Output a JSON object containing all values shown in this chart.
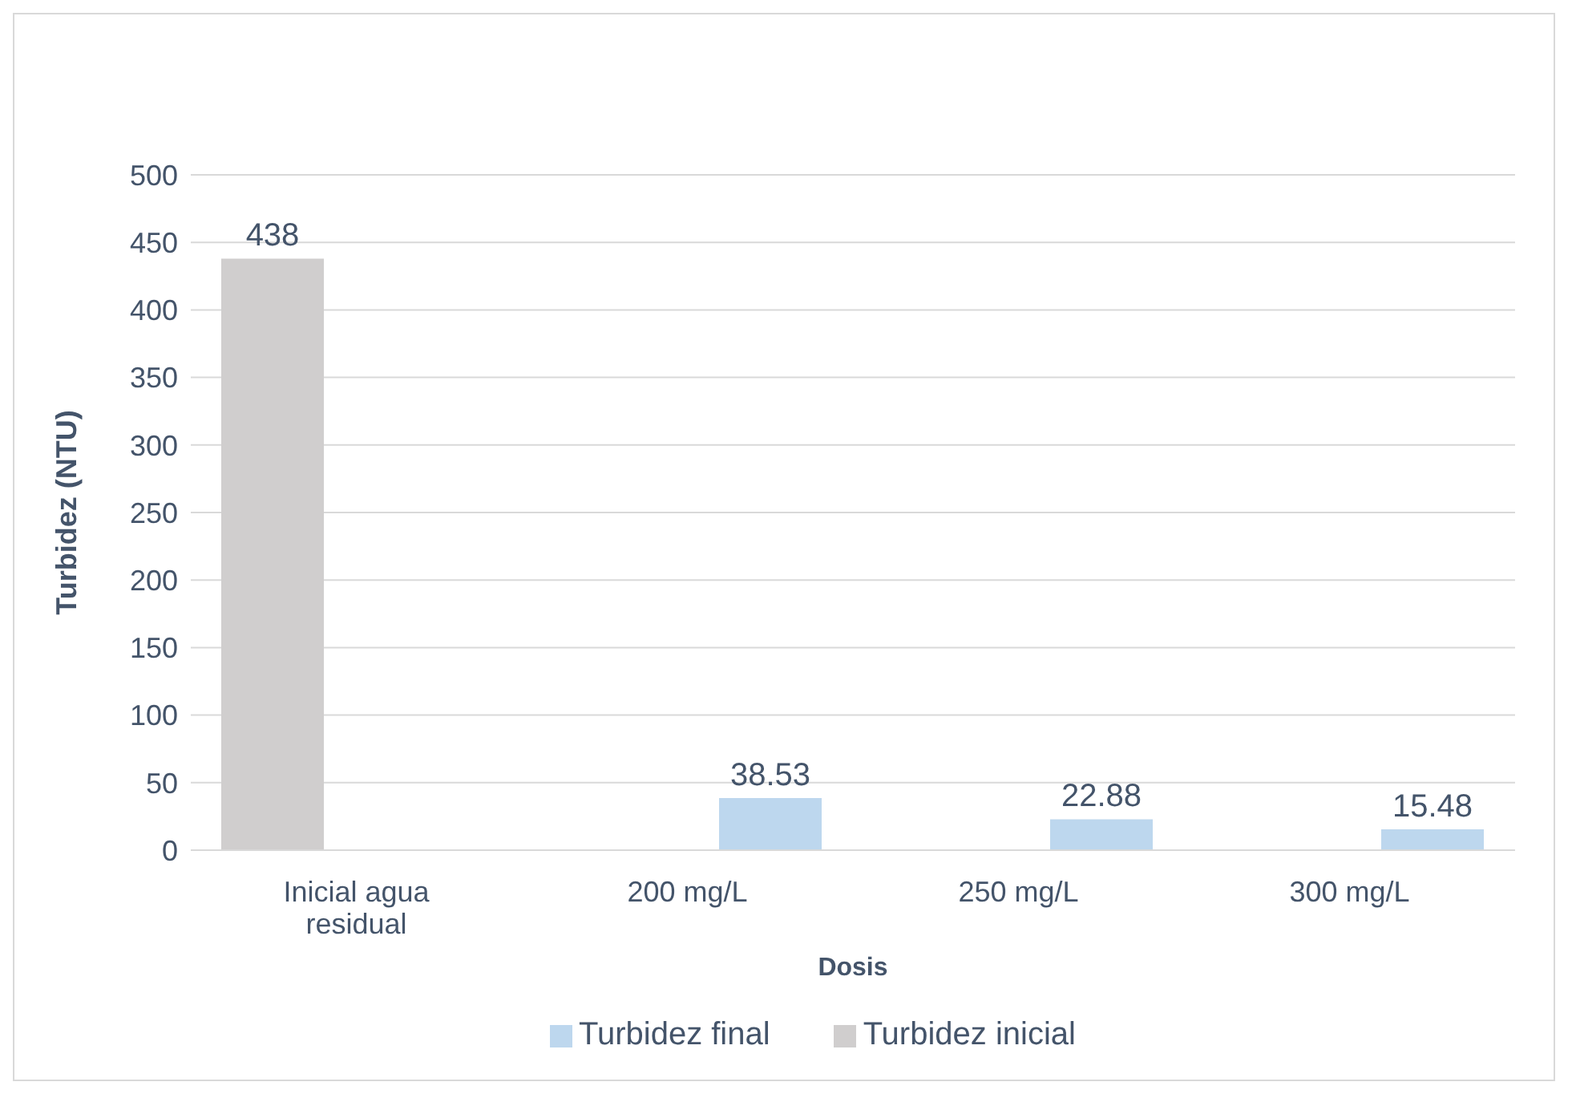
{
  "chart_data": {
    "type": "bar",
    "xlabel": "Dosis",
    "ylabel": "Turbidez (NTU)",
    "categories": [
      "Inicial agua residual",
      "200 mg/L",
      "250 mg/L",
      "300 mg/L"
    ],
    "series": [
      {
        "name": "Turbidez inicial",
        "color": "#d0cece",
        "values": [
          438,
          null,
          null,
          null
        ]
      },
      {
        "name": "Turbidez final",
        "color": "#bdd7ee",
        "values": [
          null,
          38.53,
          22.88,
          15.48
        ]
      }
    ],
    "ylim": [
      0,
      500
    ],
    "yticks": [
      0,
      50,
      100,
      150,
      200,
      250,
      300,
      350,
      400,
      450,
      500
    ],
    "grid": "y",
    "legend": "bottom",
    "data_labels": true
  }
}
